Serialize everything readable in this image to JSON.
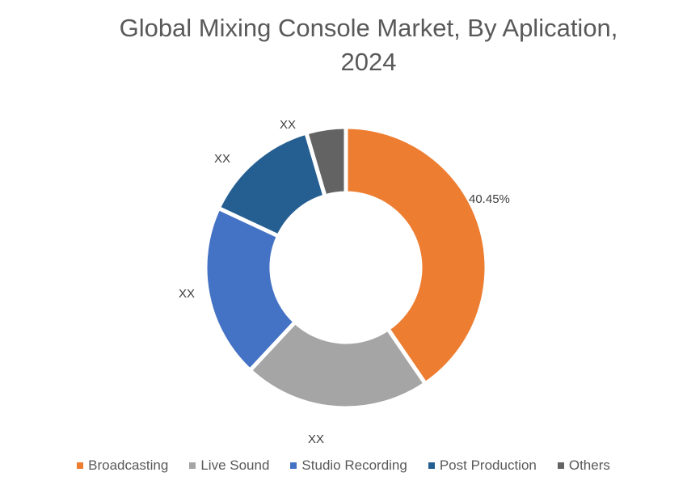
{
  "chart_data": {
    "type": "pie",
    "subtype": "donut",
    "title": "Global Mixing Console Market, By Aplication, 2024",
    "title_lines": [
      "Global Mixing Console Market, By Aplication,",
      "2024"
    ],
    "categories": [
      "Broadcasting",
      "Live Sound",
      "Studio Recording",
      "Post Production",
      "Others"
    ],
    "values": [
      40.45,
      21.5,
      20.0,
      13.5,
      4.55
    ],
    "value_labels": [
      "40.45%",
      "XX",
      "XX",
      "XX",
      "XX"
    ],
    "colors": [
      "#ED7D31",
      "#A5A5A5",
      "#4472C4",
      "#255E91",
      "#636363"
    ],
    "legend_position": "bottom",
    "start_angle_deg": 0,
    "direction": "clockwise"
  },
  "legend": {
    "items": [
      {
        "label": "Broadcasting",
        "color": "#ED7D31"
      },
      {
        "label": "Live Sound",
        "color": "#A5A5A5"
      },
      {
        "label": "Studio Recording",
        "color": "#4472C4"
      },
      {
        "label": "Post Production",
        "color": "#255E91"
      },
      {
        "label": "Others",
        "color": "#636363"
      }
    ]
  },
  "labels": {
    "broadcasting": "40.45%",
    "live_sound": "XX",
    "studio_recording": "XX",
    "post_production": "XX",
    "others": "XX"
  }
}
